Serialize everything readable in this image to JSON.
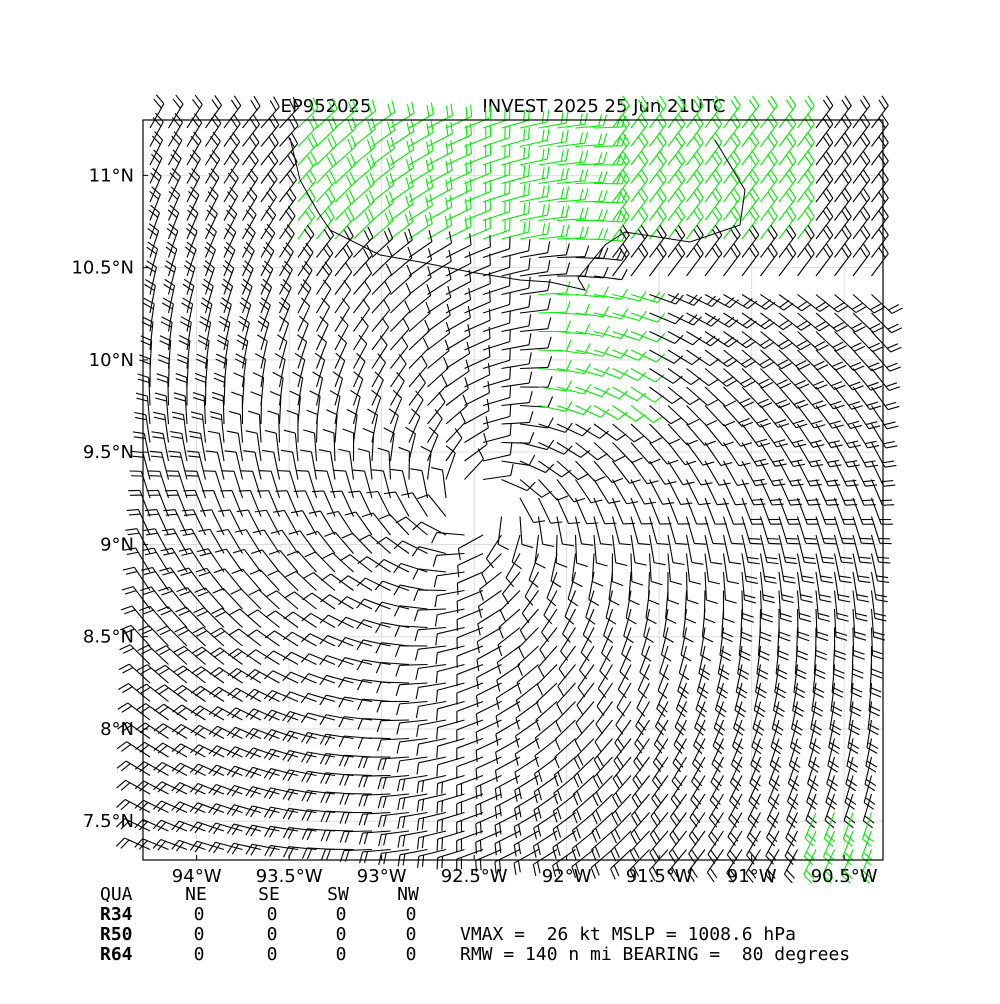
{
  "header": {
    "storm_id": "EP952025",
    "title": "INVEST 2025 25 Jun 21UTC"
  },
  "map": {
    "xlim": [
      -94.29,
      -90.29
    ],
    "ylim": [
      7.29,
      11.3
    ],
    "xticks": [
      {
        "value": -94,
        "label": "94°W"
      },
      {
        "value": -93.5,
        "label": "93.5°W"
      },
      {
        "value": -93,
        "label": "93°W"
      },
      {
        "value": -92.5,
        "label": "92.5°W"
      },
      {
        "value": -92,
        "label": "92°W"
      },
      {
        "value": -91.5,
        "label": "91.5°W"
      },
      {
        "value": -91,
        "label": "91°W"
      },
      {
        "value": -90.5,
        "label": "90.5°W"
      }
    ],
    "yticks": [
      {
        "value": 7.5,
        "label": "7.5°N"
      },
      {
        "value": 8,
        "label": "8°N"
      },
      {
        "value": 8.5,
        "label": "8.5°N"
      },
      {
        "value": 9,
        "label": "9°N"
      },
      {
        "value": 9.5,
        "label": "9.5°N"
      },
      {
        "value": 10,
        "label": "10°N"
      },
      {
        "value": 10.5,
        "label": "10.5°N"
      },
      {
        "value": 11,
        "label": "11°N"
      }
    ],
    "grid": true
  },
  "table": {
    "header": [
      "QUA",
      "NE",
      "SE",
      "SW",
      "NW"
    ],
    "rows": [
      [
        "R34",
        0,
        0,
        0,
        0
      ],
      [
        "R50",
        0,
        0,
        0,
        0
      ],
      [
        "R64",
        0,
        0,
        0,
        0
      ]
    ]
  },
  "summary": [
    "VMAX =  26 kt MSLP = 1008.6 hPa",
    "RMW = 140 n mi BEARING =  80 degrees"
  ]
}
